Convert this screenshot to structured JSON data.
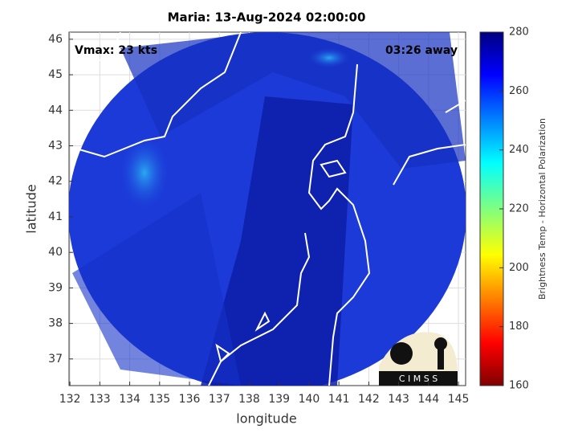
{
  "chart_data": {
    "type": "map",
    "title": "Maria: 13-Aug-2024 02:00:00",
    "annotations": [
      "Vmax: 23 kts",
      "03:26 away"
    ],
    "x_label": "longitude",
    "y_label": "latitude",
    "xlim": [
      131.97,
      145.24
    ],
    "xticks": [
      132,
      133,
      134,
      135,
      136,
      137,
      138,
      139,
      140,
      141,
      142,
      143,
      144,
      145
    ],
    "ylim": [
      36.25,
      46.2
    ],
    "yticks": [
      37,
      38,
      39,
      40,
      41,
      42,
      43,
      44,
      45,
      46
    ],
    "grid": true,
    "colorbar": {
      "label": "Brightness Temp - Horizontal Polarization",
      "lim": [
        160,
        280
      ],
      "ticks": [
        160,
        180,
        200,
        220,
        240,
        260,
        280
      ]
    },
    "logo_text": "C I M S S"
  }
}
